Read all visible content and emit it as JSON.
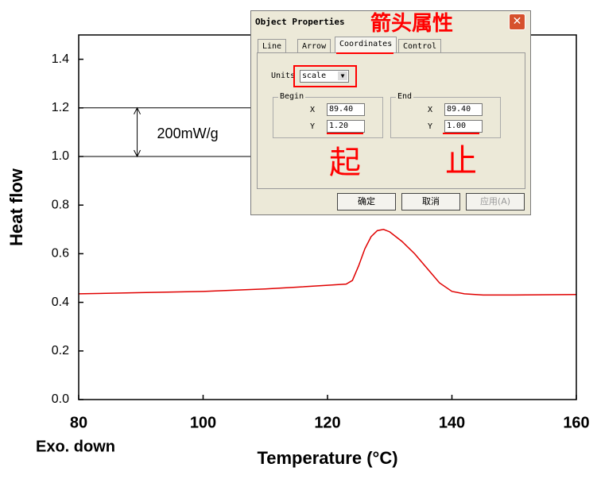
{
  "chart_data": {
    "type": "line",
    "x": [
      80,
      90,
      100,
      110,
      120,
      123,
      124,
      125,
      126,
      127,
      128,
      129,
      130,
      132,
      134,
      136,
      138,
      140,
      142,
      145,
      150,
      160
    ],
    "series": [
      {
        "color": "#e00000",
        "values": [
          0.435,
          0.44,
          0.445,
          0.455,
          0.47,
          0.475,
          0.49,
          0.55,
          0.62,
          0.67,
          0.695,
          0.7,
          0.69,
          0.65,
          0.6,
          0.54,
          0.48,
          0.445,
          0.435,
          0.43,
          0.43,
          0.432
        ]
      }
    ],
    "xlim": [
      80,
      160
    ],
    "xticks": [
      80,
      100,
      120,
      140,
      160
    ],
    "ylim": [
      0,
      1.5
    ],
    "yticks": [
      {
        "value": 0,
        "label": "0.0"
      },
      {
        "value": 0.2,
        "label": "0.2"
      },
      {
        "value": 0.4,
        "label": "0.4"
      },
      {
        "value": 0.6,
        "label": "0.6"
      },
      {
        "value": 0.8,
        "label": "0.8"
      },
      {
        "value": 1,
        "label": "1.0"
      },
      {
        "value": 1.2,
        "label": "1.2"
      },
      {
        "value": 1.4,
        "label": "1.4"
      }
    ],
    "xlabel": "Temperature (°C)",
    "ylabel": "Heat flow",
    "note": "Exo. down",
    "arrow": {
      "text": "200mW/g",
      "x": 89.4,
      "begin": 1.2,
      "end": 1
    }
  },
  "dialog": {
    "title": "Object Properties",
    "tabs": [
      "Line",
      "Arrow",
      "Coordinates",
      "Control"
    ],
    "units_label": "Units",
    "units_value": "scale",
    "begin": {
      "title": "Begin",
      "x_label": "X",
      "x": "89.40",
      "y_label": "Y",
      "y": "1.20"
    },
    "end": {
      "title": "End",
      "x_label": "X",
      "x": "89.40",
      "y_label": "Y",
      "y": "1.00"
    },
    "buttons": [
      "确定",
      "取消",
      "应用(A)"
    ]
  },
  "annotations": {
    "title": "箭头属性",
    "begin": "起",
    "end": "止"
  }
}
